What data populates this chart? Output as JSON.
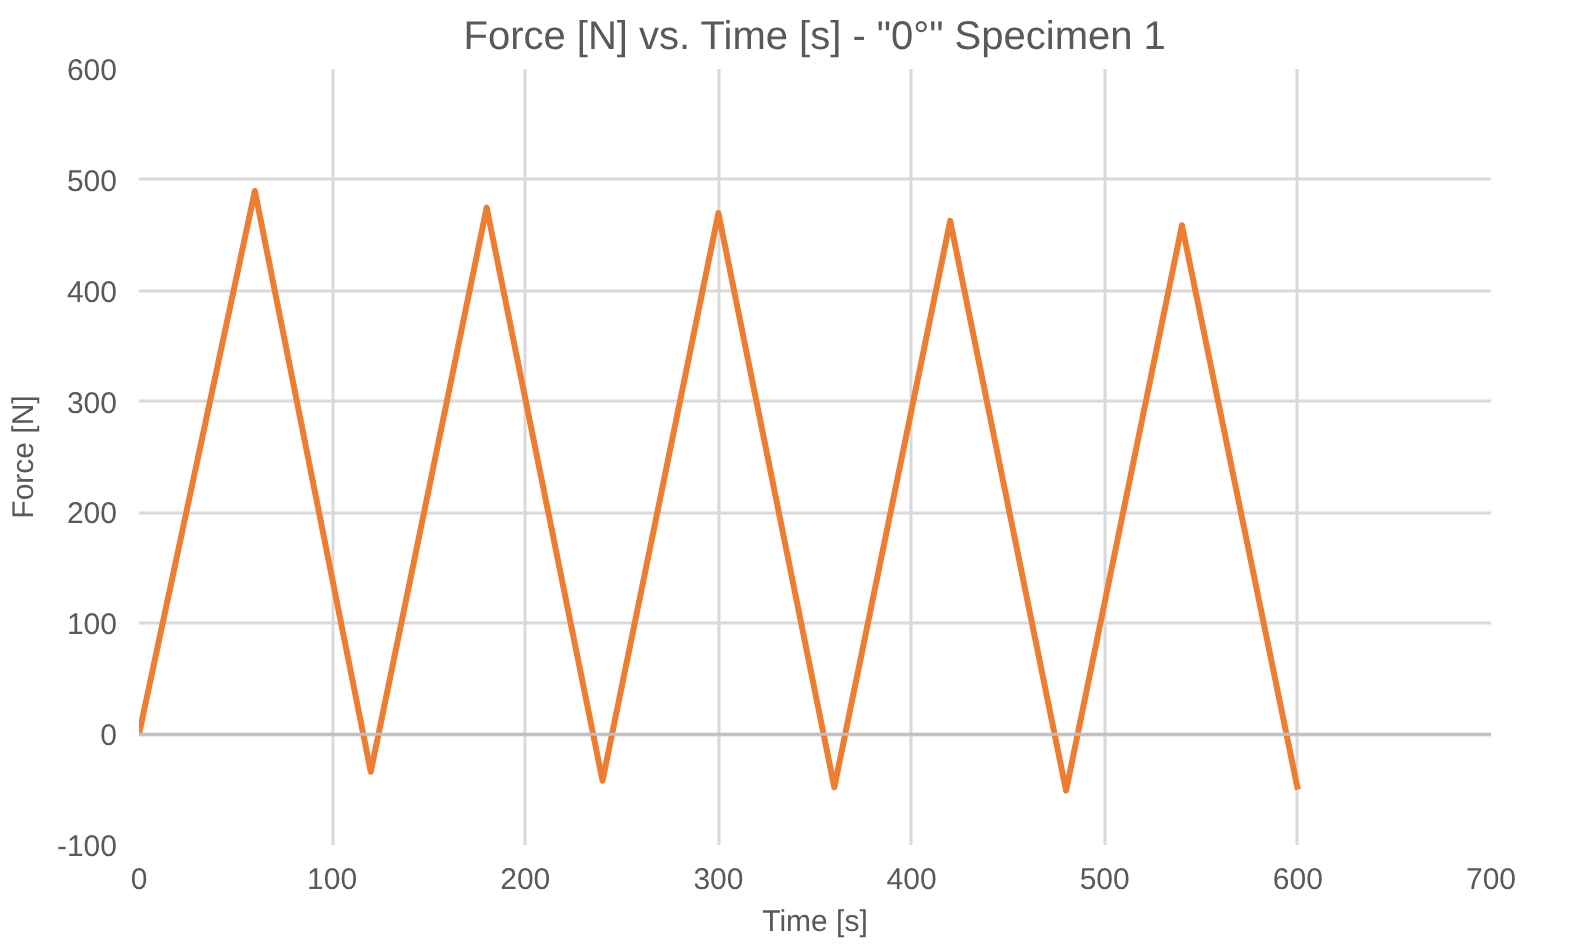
{
  "chart_data": {
    "type": "line",
    "title": "Force [N] vs. Time [s] - \"0°\" Specimen 1",
    "xlabel": "Time [s]",
    "ylabel": "Force [N]",
    "x": [
      0,
      60,
      120,
      180,
      240,
      300,
      360,
      420,
      480,
      540,
      600
    ],
    "series": [
      {
        "color": "#ed7d31",
        "values": [
          0,
          490,
          -34,
          475,
          -42,
          470,
          -48,
          463,
          -51,
          459,
          -50
        ]
      }
    ],
    "xlim": [
      0,
      700
    ],
    "xticks": [
      0,
      100,
      200,
      300,
      400,
      500,
      600,
      700
    ],
    "ylim": [
      -100,
      600
    ],
    "yticks": [
      -100,
      0,
      100,
      200,
      300,
      400,
      500,
      600
    ],
    "grid": true,
    "marker": "none",
    "line_style": "solid"
  }
}
